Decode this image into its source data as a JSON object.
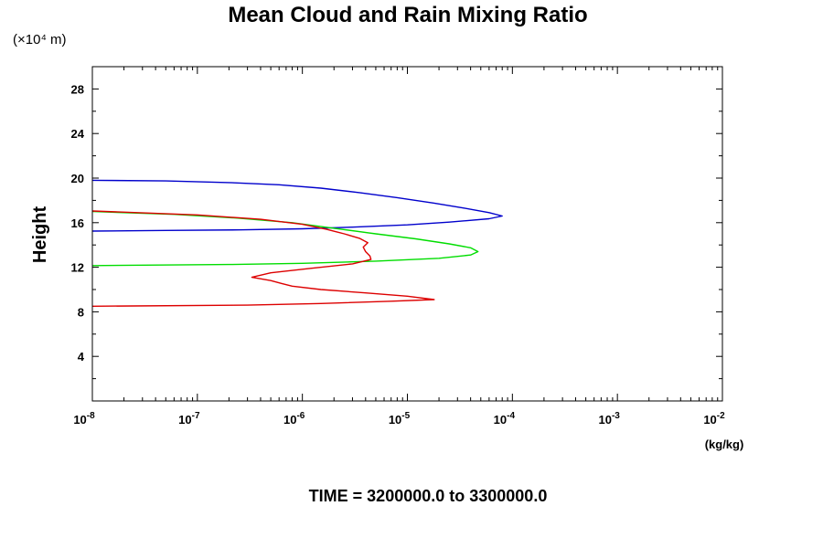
{
  "chart_data": {
    "type": "line",
    "title": "Mean Cloud and Rain Mixing Ratio",
    "y_scale_note": "(×10⁴ m)",
    "ylabel": "Height",
    "xlabel": "(kg/kg)",
    "footer": "TIME = 3200000.0 to 3300000.0",
    "x_scale": "log",
    "xlim": [
      1e-08,
      0.01
    ],
    "ylim": [
      0,
      30
    ],
    "y_ticks": [
      4,
      8,
      12,
      16,
      20,
      24,
      28
    ],
    "y_tick_labels": [
      "4",
      "8",
      "12",
      "16",
      "20",
      "24",
      "28"
    ],
    "x_ticks": [
      -8,
      -7,
      -6,
      -5,
      -4,
      -3,
      -2
    ],
    "x_tick_labels": [
      {
        "base": "10",
        "exp": "-8"
      },
      {
        "base": "10",
        "exp": "-7"
      },
      {
        "base": "10",
        "exp": "-6"
      },
      {
        "base": "10",
        "exp": "-5"
      },
      {
        "base": "10",
        "exp": "-4"
      },
      {
        "base": "10",
        "exp": "-3"
      },
      {
        "base": "10",
        "exp": "-2"
      }
    ],
    "grid": false,
    "series": [
      {
        "color": "#0000cc",
        "points": [
          [
            1e-08,
            19.8
          ],
          [
            5e-08,
            19.75
          ],
          [
            2e-07,
            19.6
          ],
          [
            6e-07,
            19.4
          ],
          [
            1.5e-06,
            19.1
          ],
          [
            3.5e-06,
            18.7
          ],
          [
            8e-06,
            18.25
          ],
          [
            1.8e-05,
            17.75
          ],
          [
            3.5e-05,
            17.3
          ],
          [
            6e-05,
            16.9
          ],
          [
            8e-05,
            16.6
          ],
          [
            6e-05,
            16.35
          ],
          [
            2.5e-05,
            16.05
          ],
          [
            1e-05,
            15.8
          ],
          [
            3e-06,
            15.6
          ],
          [
            1e-06,
            15.45
          ],
          [
            2.5e-07,
            15.35
          ],
          [
            5e-08,
            15.3
          ],
          [
            1e-08,
            15.25
          ]
        ]
      },
      {
        "color": "#00dd00",
        "points": [
          [
            1e-08,
            17.0
          ],
          [
            6e-08,
            16.75
          ],
          [
            2.5e-07,
            16.4
          ],
          [
            8e-07,
            16.0
          ],
          [
            2e-06,
            15.5
          ],
          [
            5e-06,
            15.0
          ],
          [
            1.2e-05,
            14.55
          ],
          [
            2.5e-05,
            14.1
          ],
          [
            4e-05,
            13.75
          ],
          [
            4.7e-05,
            13.4
          ],
          [
            4e-05,
            13.1
          ],
          [
            2e-05,
            12.8
          ],
          [
            5e-06,
            12.55
          ],
          [
            1e-06,
            12.35
          ],
          [
            2e-07,
            12.25
          ],
          [
            1e-08,
            12.15
          ]
        ]
      },
      {
        "color": "#dd0000",
        "points": [
          [
            1e-08,
            17.05
          ],
          [
            1e-07,
            16.7
          ],
          [
            4e-07,
            16.3
          ],
          [
            1e-06,
            15.85
          ],
          [
            1.7e-06,
            15.4
          ],
          [
            2.5e-06,
            15.0
          ],
          [
            3.5e-06,
            14.6
          ],
          [
            4.2e-06,
            14.2
          ],
          [
            3.8e-06,
            13.8
          ],
          [
            4e-06,
            13.4
          ],
          [
            4.4e-06,
            13.0
          ],
          [
            4.5e-06,
            12.7
          ],
          [
            3e-06,
            12.3
          ],
          [
            1.2e-06,
            11.9
          ],
          [
            5e-07,
            11.5
          ],
          [
            3.3e-07,
            11.1
          ],
          [
            5e-07,
            10.8
          ],
          [
            6.3e-07,
            10.55
          ],
          [
            8e-07,
            10.3
          ],
          [
            1.5e-06,
            10.0
          ],
          [
            4e-06,
            9.7
          ],
          [
            1e-05,
            9.4
          ],
          [
            1.8e-05,
            9.1
          ],
          [
            7e-06,
            8.95
          ],
          [
            1.5e-06,
            8.75
          ],
          [
            3e-07,
            8.6
          ],
          [
            1e-08,
            8.5
          ]
        ]
      }
    ]
  }
}
